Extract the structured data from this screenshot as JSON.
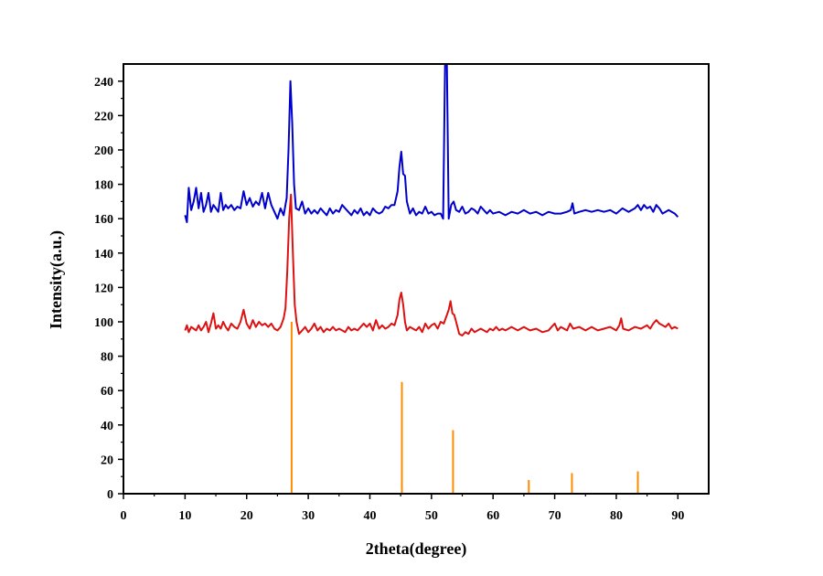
{
  "chart_data": {
    "type": "line",
    "title": "",
    "xlabel": "2theta(degree)",
    "ylabel": "Intensity(a.u.)",
    "xlim": [
      0,
      95
    ],
    "ylim": [
      0,
      250
    ],
    "xticks": [
      0,
      10,
      20,
      30,
      40,
      50,
      60,
      70,
      80,
      90
    ],
    "yticks": [
      0,
      20,
      40,
      60,
      80,
      100,
      120,
      140,
      160,
      180,
      200,
      220,
      240
    ],
    "grid": false,
    "legend": "none",
    "series": [
      {
        "color": "#0000cc",
        "style": "line",
        "points": [
          [
            10.0,
            162
          ],
          [
            10.3,
            158
          ],
          [
            10.6,
            178
          ],
          [
            11.0,
            165
          ],
          [
            11.4,
            170
          ],
          [
            11.8,
            178
          ],
          [
            12.2,
            166
          ],
          [
            12.6,
            175
          ],
          [
            13.0,
            164
          ],
          [
            13.4,
            168
          ],
          [
            13.8,
            175
          ],
          [
            14.2,
            164
          ],
          [
            14.6,
            168
          ],
          [
            15.0,
            166
          ],
          [
            15.4,
            164
          ],
          [
            15.8,
            175
          ],
          [
            16.2,
            165
          ],
          [
            16.6,
            168
          ],
          [
            17.0,
            166
          ],
          [
            17.5,
            168
          ],
          [
            18.0,
            165
          ],
          [
            18.5,
            167
          ],
          [
            19.0,
            166
          ],
          [
            19.5,
            176
          ],
          [
            20.0,
            168
          ],
          [
            20.5,
            172
          ],
          [
            21.0,
            167
          ],
          [
            21.5,
            170
          ],
          [
            22.0,
            168
          ],
          [
            22.5,
            175
          ],
          [
            23.0,
            166
          ],
          [
            23.5,
            175
          ],
          [
            24.0,
            168
          ],
          [
            24.5,
            164
          ],
          [
            25.0,
            160
          ],
          [
            25.5,
            166
          ],
          [
            26.0,
            162
          ],
          [
            26.5,
            172
          ],
          [
            26.8,
            200
          ],
          [
            27.1,
            240
          ],
          [
            27.4,
            215
          ],
          [
            27.7,
            180
          ],
          [
            28.0,
            166
          ],
          [
            28.5,
            165
          ],
          [
            29.0,
            170
          ],
          [
            29.5,
            163
          ],
          [
            30.0,
            166
          ],
          [
            30.5,
            163
          ],
          [
            31.0,
            165
          ],
          [
            31.5,
            163
          ],
          [
            32.0,
            166
          ],
          [
            32.5,
            164
          ],
          [
            33.0,
            162
          ],
          [
            33.5,
            166
          ],
          [
            34.0,
            163
          ],
          [
            34.5,
            165
          ],
          [
            35.0,
            164
          ],
          [
            35.5,
            168
          ],
          [
            36.0,
            166
          ],
          [
            36.5,
            164
          ],
          [
            37.0,
            162
          ],
          [
            37.5,
            165
          ],
          [
            38.0,
            163
          ],
          [
            38.5,
            166
          ],
          [
            39.0,
            162
          ],
          [
            39.5,
            164
          ],
          [
            40.0,
            162
          ],
          [
            40.5,
            166
          ],
          [
            41.0,
            164
          ],
          [
            41.5,
            163
          ],
          [
            42.0,
            164
          ],
          [
            42.5,
            167
          ],
          [
            43.0,
            166
          ],
          [
            43.5,
            168
          ],
          [
            44.0,
            168
          ],
          [
            44.5,
            176
          ],
          [
            44.8,
            190
          ],
          [
            45.1,
            199
          ],
          [
            45.4,
            186
          ],
          [
            45.7,
            185
          ],
          [
            46.0,
            170
          ],
          [
            46.5,
            163
          ],
          [
            47.0,
            166
          ],
          [
            47.5,
            162
          ],
          [
            48.0,
            164
          ],
          [
            48.5,
            163
          ],
          [
            49.0,
            167
          ],
          [
            49.5,
            163
          ],
          [
            50.0,
            164
          ],
          [
            50.5,
            162
          ],
          [
            51.0,
            163
          ],
          [
            51.5,
            163
          ],
          [
            51.9,
            160
          ],
          [
            52.2,
            250
          ],
          [
            52.5,
            250
          ],
          [
            52.8,
            160
          ],
          [
            53.2,
            168
          ],
          [
            53.6,
            170
          ],
          [
            54.0,
            165
          ],
          [
            54.5,
            164
          ],
          [
            55.0,
            167
          ],
          [
            55.5,
            163
          ],
          [
            56.0,
            164
          ],
          [
            56.5,
            166
          ],
          [
            57.0,
            165
          ],
          [
            57.5,
            163
          ],
          [
            58.0,
            167
          ],
          [
            58.5,
            165
          ],
          [
            59.0,
            163
          ],
          [
            59.5,
            165
          ],
          [
            60.0,
            163
          ],
          [
            61.0,
            164
          ],
          [
            62.0,
            162
          ],
          [
            63.0,
            164
          ],
          [
            64.0,
            163
          ],
          [
            65.0,
            165
          ],
          [
            66.0,
            163
          ],
          [
            67.0,
            164
          ],
          [
            68.0,
            162
          ],
          [
            69.0,
            164
          ],
          [
            70.0,
            163
          ],
          [
            71.0,
            163
          ],
          [
            72.0,
            164
          ],
          [
            72.6,
            165
          ],
          [
            72.9,
            169
          ],
          [
            73.2,
            163
          ],
          [
            74.0,
            164
          ],
          [
            75.0,
            165
          ],
          [
            76.0,
            164
          ],
          [
            77.0,
            165
          ],
          [
            78.0,
            164
          ],
          [
            79.0,
            165
          ],
          [
            80.0,
            163
          ],
          [
            81.0,
            166
          ],
          [
            82.0,
            164
          ],
          [
            83.0,
            166
          ],
          [
            83.5,
            168
          ],
          [
            84.0,
            165
          ],
          [
            84.5,
            168
          ],
          [
            85.0,
            166
          ],
          [
            85.5,
            167
          ],
          [
            86.0,
            164
          ],
          [
            86.5,
            168
          ],
          [
            87.0,
            166
          ],
          [
            87.5,
            163
          ],
          [
            88.0,
            164
          ],
          [
            88.5,
            165
          ],
          [
            89.0,
            164
          ],
          [
            89.5,
            163
          ],
          [
            90.0,
            161
          ]
        ]
      },
      {
        "color": "#dd1111",
        "style": "line",
        "points": [
          [
            10.0,
            95
          ],
          [
            10.3,
            98
          ],
          [
            10.6,
            94
          ],
          [
            11.0,
            97
          ],
          [
            11.4,
            96
          ],
          [
            11.8,
            95
          ],
          [
            12.2,
            98
          ],
          [
            12.6,
            95
          ],
          [
            13.0,
            97
          ],
          [
            13.4,
            100
          ],
          [
            13.8,
            94
          ],
          [
            14.2,
            99
          ],
          [
            14.6,
            105
          ],
          [
            15.0,
            96
          ],
          [
            15.4,
            98
          ],
          [
            15.8,
            96
          ],
          [
            16.2,
            100
          ],
          [
            16.6,
            97
          ],
          [
            17.0,
            95
          ],
          [
            17.5,
            99
          ],
          [
            18.0,
            97
          ],
          [
            18.5,
            96
          ],
          [
            19.0,
            100
          ],
          [
            19.5,
            107
          ],
          [
            20.0,
            99
          ],
          [
            20.5,
            96
          ],
          [
            21.0,
            101
          ],
          [
            21.5,
            97
          ],
          [
            22.0,
            100
          ],
          [
            22.5,
            98
          ],
          [
            23.0,
            99
          ],
          [
            23.5,
            97
          ],
          [
            24.0,
            99
          ],
          [
            24.5,
            96
          ],
          [
            25.0,
            95
          ],
          [
            25.5,
            97
          ],
          [
            26.0,
            102
          ],
          [
            26.3,
            108
          ],
          [
            26.6,
            130
          ],
          [
            26.9,
            160
          ],
          [
            27.2,
            174
          ],
          [
            27.5,
            140
          ],
          [
            27.8,
            110
          ],
          [
            28.1,
            100
          ],
          [
            28.5,
            93
          ],
          [
            29.0,
            95
          ],
          [
            29.5,
            97
          ],
          [
            30.0,
            94
          ],
          [
            30.5,
            96
          ],
          [
            31.0,
            99
          ],
          [
            31.5,
            95
          ],
          [
            32.0,
            97
          ],
          [
            32.5,
            94
          ],
          [
            33.0,
            96
          ],
          [
            33.5,
            95
          ],
          [
            34.0,
            97
          ],
          [
            34.5,
            95
          ],
          [
            35.0,
            96
          ],
          [
            35.5,
            95
          ],
          [
            36.0,
            94
          ],
          [
            36.5,
            97
          ],
          [
            37.0,
            95
          ],
          [
            37.5,
            96
          ],
          [
            38.0,
            95
          ],
          [
            38.5,
            97
          ],
          [
            39.0,
            99
          ],
          [
            39.5,
            97
          ],
          [
            40.0,
            99
          ],
          [
            40.5,
            95
          ],
          [
            41.0,
            101
          ],
          [
            41.5,
            96
          ],
          [
            42.0,
            98
          ],
          [
            42.5,
            96
          ],
          [
            43.0,
            97
          ],
          [
            43.5,
            99
          ],
          [
            44.0,
            98
          ],
          [
            44.5,
            104
          ],
          [
            44.8,
            113
          ],
          [
            45.1,
            117
          ],
          [
            45.4,
            110
          ],
          [
            45.7,
            100
          ],
          [
            46.0,
            95
          ],
          [
            46.5,
            97
          ],
          [
            47.0,
            96
          ],
          [
            47.5,
            95
          ],
          [
            48.0,
            97
          ],
          [
            48.5,
            94
          ],
          [
            49.0,
            99
          ],
          [
            49.5,
            96
          ],
          [
            50.0,
            98
          ],
          [
            50.5,
            99
          ],
          [
            51.0,
            96
          ],
          [
            51.5,
            100
          ],
          [
            52.0,
            99
          ],
          [
            52.5,
            104
          ],
          [
            52.8,
            107
          ],
          [
            53.1,
            112
          ],
          [
            53.4,
            105
          ],
          [
            53.7,
            104
          ],
          [
            54.0,
            100
          ],
          [
            54.5,
            93
          ],
          [
            55.0,
            92
          ],
          [
            55.5,
            94
          ],
          [
            56.0,
            93
          ],
          [
            56.5,
            96
          ],
          [
            57.0,
            94
          ],
          [
            57.5,
            95
          ],
          [
            58.0,
            96
          ],
          [
            58.5,
            95
          ],
          [
            59.0,
            94
          ],
          [
            59.5,
            96
          ],
          [
            60.0,
            95
          ],
          [
            60.5,
            97
          ],
          [
            61.0,
            95
          ],
          [
            61.5,
            96
          ],
          [
            62.0,
            95
          ],
          [
            63.0,
            97
          ],
          [
            64.0,
            95
          ],
          [
            65.0,
            97
          ],
          [
            66.0,
            95
          ],
          [
            67.0,
            96
          ],
          [
            68.0,
            94
          ],
          [
            69.0,
            95
          ],
          [
            69.5,
            97
          ],
          [
            70.0,
            99
          ],
          [
            70.5,
            95
          ],
          [
            71.0,
            97
          ],
          [
            72.0,
            95
          ],
          [
            72.5,
            99
          ],
          [
            73.0,
            96
          ],
          [
            74.0,
            97
          ],
          [
            75.0,
            95
          ],
          [
            76.0,
            97
          ],
          [
            77.0,
            95
          ],
          [
            78.0,
            96
          ],
          [
            79.0,
            97
          ],
          [
            80.0,
            95
          ],
          [
            80.5,
            98
          ],
          [
            80.8,
            102
          ],
          [
            81.1,
            96
          ],
          [
            82.0,
            95
          ],
          [
            83.0,
            97
          ],
          [
            84.0,
            96
          ],
          [
            85.0,
            98
          ],
          [
            85.5,
            96
          ],
          [
            86.0,
            99
          ],
          [
            86.5,
            101
          ],
          [
            87.0,
            99
          ],
          [
            87.5,
            98
          ],
          [
            88.0,
            97
          ],
          [
            88.5,
            99
          ],
          [
            89.0,
            96
          ],
          [
            89.5,
            97
          ],
          [
            90.0,
            96
          ]
        ]
      },
      {
        "color": "#ff8c00",
        "style": "stick",
        "points": [
          [
            27.3,
            100
          ],
          [
            45.2,
            65
          ],
          [
            53.5,
            37
          ],
          [
            65.8,
            8
          ],
          [
            72.8,
            12
          ],
          [
            83.5,
            13
          ]
        ]
      }
    ]
  }
}
